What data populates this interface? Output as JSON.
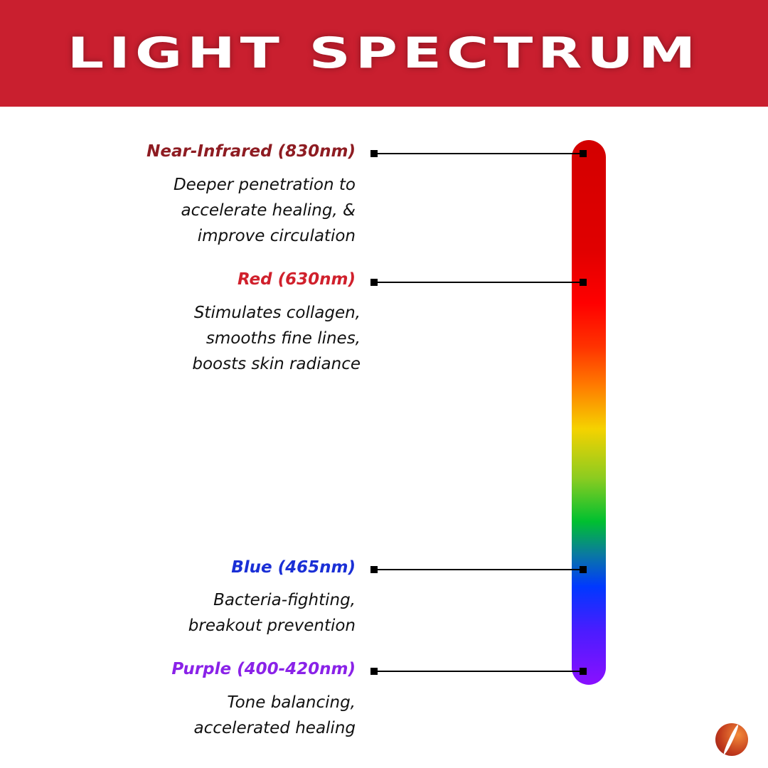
{
  "title": "LIGHT SPECTRUM",
  "items": [
    {
      "label": "Near-Infrared (830nm)",
      "color": "#8e1c22",
      "desc": "Deeper penetration to\naccelerate healing, &\nimprove circulation"
    },
    {
      "label": "Red (630nm)",
      "color": "#d0202c",
      "desc": "Stimulates collagen,\nsmooths fine lines,\nboosts skin radiance"
    },
    {
      "label": "Blue (465nm)",
      "color": "#1a2fd6",
      "desc": "Bacteria-fighting,\nbreakout prevention"
    },
    {
      "label": "Purple (400-420nm)",
      "color": "#8a22e8",
      "desc": "Tone balancing,\naccelerated healing"
    }
  ],
  "logo_icon": "yin-yang-swirl-logo"
}
